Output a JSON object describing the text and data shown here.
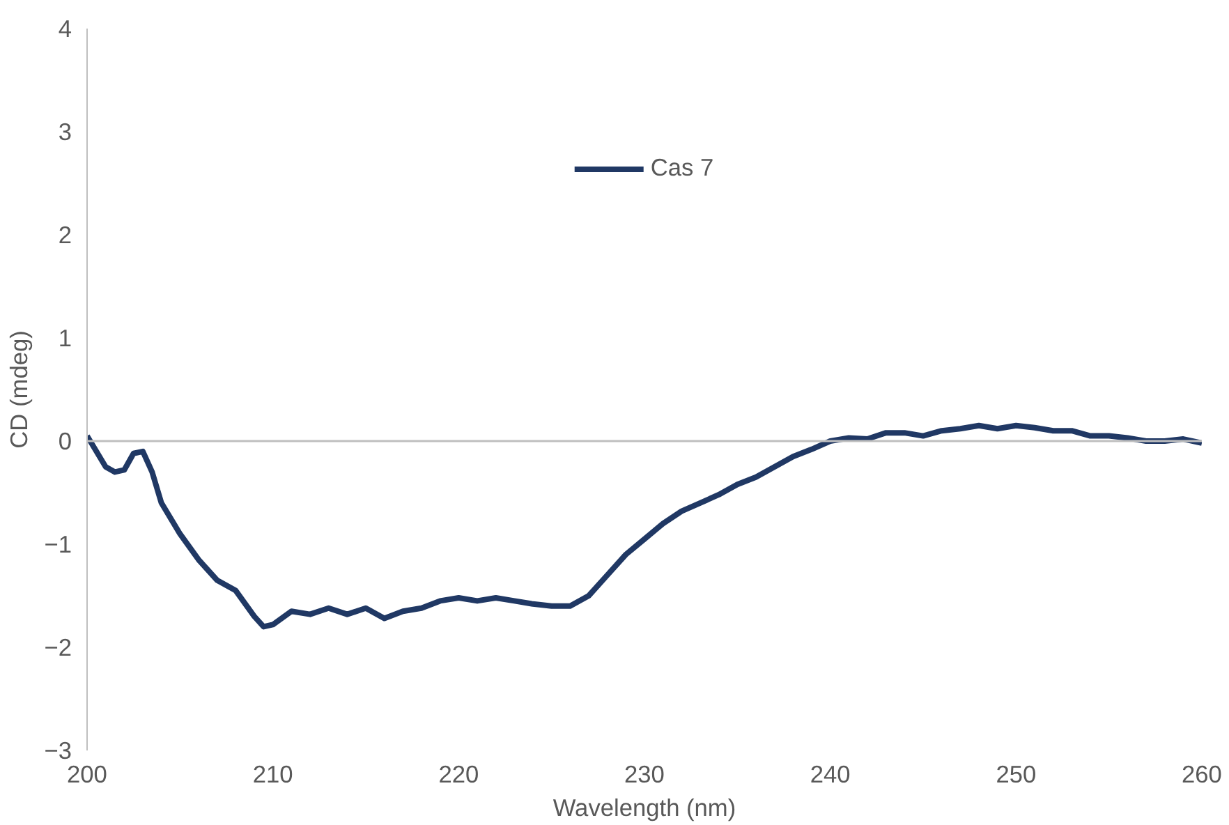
{
  "chart_data": {
    "type": "line",
    "xlabel": "Wavelength (nm)",
    "ylabel": "CD (mdeg)",
    "x": [
      200,
      201,
      201.5,
      202,
      202.5,
      203,
      203.5,
      204,
      205,
      206,
      207,
      208,
      209,
      209.5,
      210,
      211,
      212,
      213,
      214,
      215,
      216,
      217,
      218,
      219,
      220,
      221,
      222,
      223,
      224,
      225,
      226,
      227,
      228,
      229,
      230,
      231,
      232,
      233,
      234,
      235,
      236,
      237,
      238,
      239,
      240,
      241,
      242,
      243,
      244,
      245,
      246,
      247,
      248,
      249,
      250,
      251,
      252,
      253,
      254,
      255,
      256,
      257,
      258,
      259,
      260
    ],
    "series": [
      {
        "name": "Cas 7",
        "color": "#203864",
        "values": [
          0.05,
          -0.25,
          -0.3,
          -0.28,
          -0.12,
          -0.1,
          -0.3,
          -0.6,
          -0.9,
          -1.15,
          -1.35,
          -1.45,
          -1.7,
          -1.8,
          -1.78,
          -1.65,
          -1.68,
          -1.62,
          -1.68,
          -1.62,
          -1.72,
          -1.65,
          -1.62,
          -1.55,
          -1.52,
          -1.55,
          -1.52,
          -1.55,
          -1.58,
          -1.6,
          -1.6,
          -1.5,
          -1.3,
          -1.1,
          -0.95,
          -0.8,
          -0.68,
          -0.6,
          -0.52,
          -0.42,
          -0.35,
          -0.25,
          -0.15,
          -0.08,
          0.0,
          0.03,
          0.02,
          0.08,
          0.08,
          0.05,
          0.1,
          0.12,
          0.15,
          0.12,
          0.15,
          0.13,
          0.1,
          0.1,
          0.05,
          0.05,
          0.03,
          0.0,
          0.0,
          0.02,
          -0.02
        ]
      }
    ],
    "xlim": [
      200,
      260
    ],
    "xticks": [
      200,
      210,
      220,
      230,
      240,
      250,
      260
    ],
    "ylim": [
      -3,
      4
    ],
    "yticks": [
      -3,
      -2,
      -1,
      0,
      1,
      2,
      3,
      4
    ],
    "ref_lines": [
      {
        "axis": "y",
        "value": 0,
        "color": "#bfbfbf"
      }
    ],
    "grid": false,
    "legend": "top",
    "line_style": "solid"
  }
}
